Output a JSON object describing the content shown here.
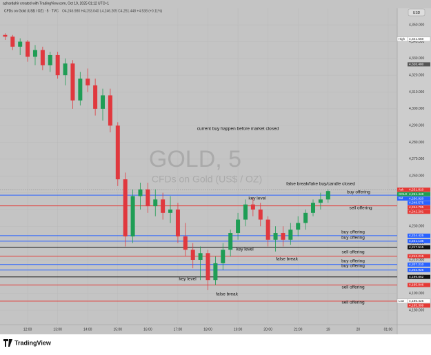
{
  "header": {
    "credit": "azhardahir created with TradingView.com, Oct 19, 2025 01:12 UTC+1",
    "symbol_line": "CFDs on Gold (US$ / OZ) · 5 · TVC",
    "ohlc": "O4,246.980 H4,253.040 L4,246.205 C4,251.448 +4.538 (+0.11%)",
    "currency": "USD"
  },
  "chart_data": {
    "type": "candlestick",
    "watermark": "GOLD, 5",
    "watermark_sub": "CFDs on Gold (US$ / OZ)",
    "x": [
      11.25,
      11.5,
      11.75,
      12,
      12.25,
      12.5,
      12.75,
      13,
      13.25,
      13.5,
      13.75,
      14,
      14.25,
      14.5,
      14.75,
      15,
      15.25,
      15.5,
      15.75,
      16,
      16.25,
      16.5,
      16.75,
      17,
      17.25,
      17.5,
      17.75,
      18,
      18.25,
      18.5,
      18.75,
      19,
      19.25,
      19.5,
      19.75,
      20,
      20.25,
      20.5,
      20.75,
      21,
      21.25,
      21.5,
      21.75,
      22
    ],
    "open": [
      4344,
      4343,
      4337,
      4340,
      4331,
      4335,
      4326,
      4332,
      4320,
      4327,
      4305,
      4318,
      4314,
      4300,
      4308,
      4290,
      4258,
      4224,
      4248,
      4252,
      4242,
      4246,
      4238,
      4240,
      4224,
      4216,
      4210,
      4214,
      4198,
      4208,
      4216,
      4226,
      4234,
      4243,
      4240,
      4234,
      4222,
      4226,
      4222,
      4228,
      4232,
      4238,
      4244,
      4246
    ],
    "high": [
      4345,
      4344,
      4342,
      4341,
      4338,
      4337,
      4334,
      4334,
      4330,
      4329,
      4322,
      4324,
      4318,
      4312,
      4312,
      4292,
      4262,
      4252,
      4256,
      4256,
      4252,
      4250,
      4248,
      4244,
      4232,
      4220,
      4218,
      4216,
      4212,
      4220,
      4228,
      4238,
      4246,
      4247,
      4244,
      4236,
      4230,
      4230,
      4232,
      4236,
      4240,
      4246,
      4250,
      4252
    ],
    "low": [
      4341,
      4335,
      4332,
      4328,
      4326,
      4323,
      4322,
      4318,
      4314,
      4300,
      4302,
      4310,
      4296,
      4293,
      4286,
      4254,
      4218,
      4220,
      4240,
      4238,
      4236,
      4234,
      4232,
      4220,
      4212,
      4205,
      4198,
      4192,
      4195,
      4204,
      4212,
      4222,
      4230,
      4236,
      4230,
      4218,
      4215,
      4218,
      4219,
      4224,
      4228,
      4236,
      4240,
      4244
    ],
    "close": [
      4343,
      4337,
      4340,
      4331,
      4335,
      4326,
      4332,
      4320,
      4327,
      4305,
      4318,
      4314,
      4300,
      4308,
      4290,
      4258,
      4224,
      4248,
      4252,
      4242,
      4246,
      4238,
      4240,
      4224,
      4216,
      4210,
      4214,
      4198,
      4208,
      4216,
      4226,
      4234,
      4243,
      4240,
      4234,
      4222,
      4226,
      4222,
      4228,
      4232,
      4238,
      4244,
      4246,
      4251
    ],
    "up_color": "#1f9d55",
    "down_color": "#e0383e",
    "xlim": [
      11.08,
      24.3
    ],
    "xticks": [
      {
        "value": 12,
        "label": "12:00"
      },
      {
        "value": 13,
        "label": "13:00"
      },
      {
        "value": 14,
        "label": "14:00"
      },
      {
        "value": 15,
        "label": "15:00"
      },
      {
        "value": 16,
        "label": "16:00"
      },
      {
        "value": 17,
        "label": "17:00"
      },
      {
        "value": 18,
        "label": "18:00"
      },
      {
        "value": 19,
        "label": "19:00"
      },
      {
        "value": 20,
        "label": "20:00"
      },
      {
        "value": 21,
        "label": "21:00"
      },
      {
        "value": 22,
        "label": "19"
      },
      {
        "value": 23,
        "label": "20"
      },
      {
        "value": 24,
        "label": "01:00"
      }
    ],
    "ylim": [
      4171.4,
      4359.9
    ],
    "yticks": [
      {
        "value": 4180,
        "label": "4,180.000"
      },
      {
        "value": 4190,
        "label": "4,190.000"
      },
      {
        "value": 4200,
        "label": "4,200.000"
      },
      {
        "value": 4210,
        "label": "4,210.000"
      },
      {
        "value": 4220,
        "label": "4,220.000"
      },
      {
        "value": 4230,
        "label": "4,230.000"
      },
      {
        "value": 4240,
        "label": "4,240.000"
      },
      {
        "value": 4250,
        "label": "4,250.000"
      },
      {
        "value": 4260,
        "label": "4,260.000"
      },
      {
        "value": 4270,
        "label": "4,270.000"
      },
      {
        "value": 4280,
        "label": "4,280.000"
      },
      {
        "value": 4290,
        "label": "4,290.000"
      },
      {
        "value": 4300,
        "label": "4,300.000"
      },
      {
        "value": 4310,
        "label": "4,310.000"
      },
      {
        "value": 4320,
        "label": "4,320.000"
      },
      {
        "value": 4330,
        "label": "4,330.000"
      },
      {
        "value": 4340,
        "label": "4,340.000"
      },
      {
        "value": 4350,
        "label": "4,350.000"
      }
    ],
    "price_lines": [
      {
        "tag": "High",
        "value": 4341.56,
        "label": "4,341.560",
        "color": "#ffffff",
        "style": "none"
      },
      {
        "value": 4326.48,
        "label": "4,326.480",
        "color": "#555555",
        "style": "none"
      },
      {
        "tag": "Ask",
        "value": 4251.81,
        "label": "4,251.810",
        "color": "#e53935",
        "style": "dotted"
      },
      {
        "tag": "GOLD",
        "value": 4251.448,
        "label": "4,251.448",
        "color": "#1f9d55",
        "style": "none"
      },
      {
        "tag": "Bid",
        "value": 4250.92,
        "label": "4,250.920",
        "color": "#2962ff",
        "style": "none"
      },
      {
        "value": 4248.575,
        "label": "4,248.575",
        "color": "#2962ff",
        "style": "solid"
      },
      {
        "value": 4244.705,
        "label": "4,244.705",
        "color": "#e53935",
        "style": "none"
      },
      {
        "value": 4242.201,
        "label": "4,242.201",
        "color": "#e53935",
        "style": "solid"
      },
      {
        "value": 4224.425,
        "label": "4,224.425",
        "color": "#2962ff",
        "style": "solid"
      },
      {
        "value": 4221.135,
        "label": "4,221.135",
        "color": "#2962ff",
        "style": "solid"
      },
      {
        "value": 4217.515,
        "label": "4,217.515",
        "color": "#111111",
        "style": "solid"
      },
      {
        "value": 4212.215,
        "label": "4,212.215",
        "color": "#e53935",
        "style": "solid"
      },
      {
        "value": 4207.21,
        "label": "4,207.210",
        "color": "#2962ff",
        "style": "solid"
      },
      {
        "value": 4203.925,
        "label": "4,203.925",
        "color": "#2962ff",
        "style": "solid"
      },
      {
        "value": 4199.862,
        "label": "4,199.862",
        "color": "#111111",
        "style": "solid"
      },
      {
        "value": 4195.046,
        "label": "4,195.046",
        "color": "#e53935",
        "style": "solid"
      },
      {
        "value": 4185.399,
        "label": "4,185.399",
        "color": "#e53935",
        "style": "solid"
      },
      {
        "tag": "Low",
        "value": 4185.425,
        "label": "4,185.425",
        "color": "#ffffff",
        "style": "none"
      }
    ],
    "annotations": [
      "current buy happen before market closed",
      "false break/fake buy/candle closed",
      "buy offering",
      "key level",
      "sell offering",
      "buy offering",
      "buy offering",
      "key level",
      "sell offering",
      "false break",
      "buy offering",
      "buy offering",
      "key level",
      "sell offering",
      "false break",
      "sell offering"
    ]
  },
  "footer": {
    "brand": "TradingView"
  }
}
